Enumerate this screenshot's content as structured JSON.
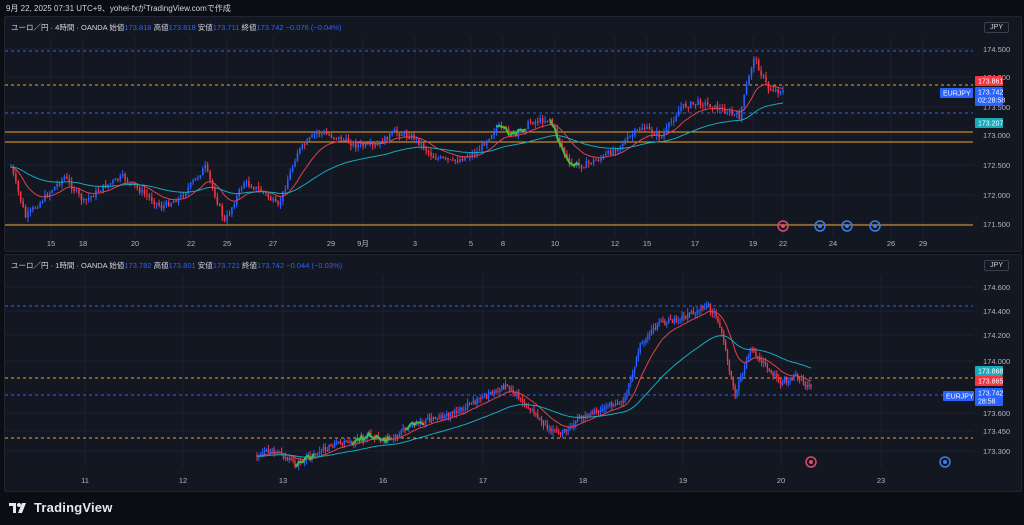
{
  "header": {
    "text": "9月 22, 2025 07:31 UTC+9、yohei-fxがTradingView.comで作成"
  },
  "chart1": {
    "legend_title": "ユーロ／円 · 4時間 · OANDA",
    "open_label": "始値",
    "open": "173.818",
    "high_label": "高値",
    "high": "173.818",
    "low_label": "安値",
    "low": "173.711",
    "close_label": "終値",
    "close": "173.742",
    "change": "−0.076 (−0.04%)",
    "currency": "JPY",
    "price_labels": [
      "174.500",
      "174.000",
      "173.500",
      "173.000",
      "172.500",
      "172.000",
      "171.500"
    ],
    "tags": {
      "red": "173.861",
      "blue_price": "173.742",
      "blue_time": "02:28:58",
      "teal": "173.207",
      "symbol": "EURJPY"
    },
    "time_labels": [
      "15",
      "18",
      "20",
      "22",
      "25",
      "27",
      "29",
      "9月",
      "3",
      "5",
      "8",
      "10",
      "12",
      "15",
      "17",
      "19",
      "22",
      "24",
      "26",
      "29"
    ]
  },
  "chart2": {
    "legend_title": "ユーロ／円 · 1時間 · OANDA",
    "open_label": "始値",
    "open": "173.782",
    "high_label": "高値",
    "high": "173.801",
    "low_label": "安値",
    "low": "173.721",
    "close_label": "終値",
    "close": "173.742",
    "change": "−0.044 (−0.03%)",
    "currency": "JPY",
    "price_labels": [
      "174.600",
      "174.400",
      "174.200",
      "174.000",
      "173.600",
      "173.450",
      "173.300"
    ],
    "tags": {
      "teal": "173.868",
      "red": "173.865",
      "symbol": "EURJPY",
      "blue_price": "173.742",
      "blue_time": "28:58"
    },
    "time_labels": [
      "11",
      "12",
      "13",
      "16",
      "17",
      "18",
      "19",
      "20",
      "23"
    ]
  },
  "footer": {
    "logo_text": "TradingView"
  },
  "colors": {
    "up": "#2962ff",
    "down": "#f23645",
    "ema_fast": "#e0414d",
    "ema_slow": "#19a9b8",
    "hline": "#f0a52b"
  }
}
